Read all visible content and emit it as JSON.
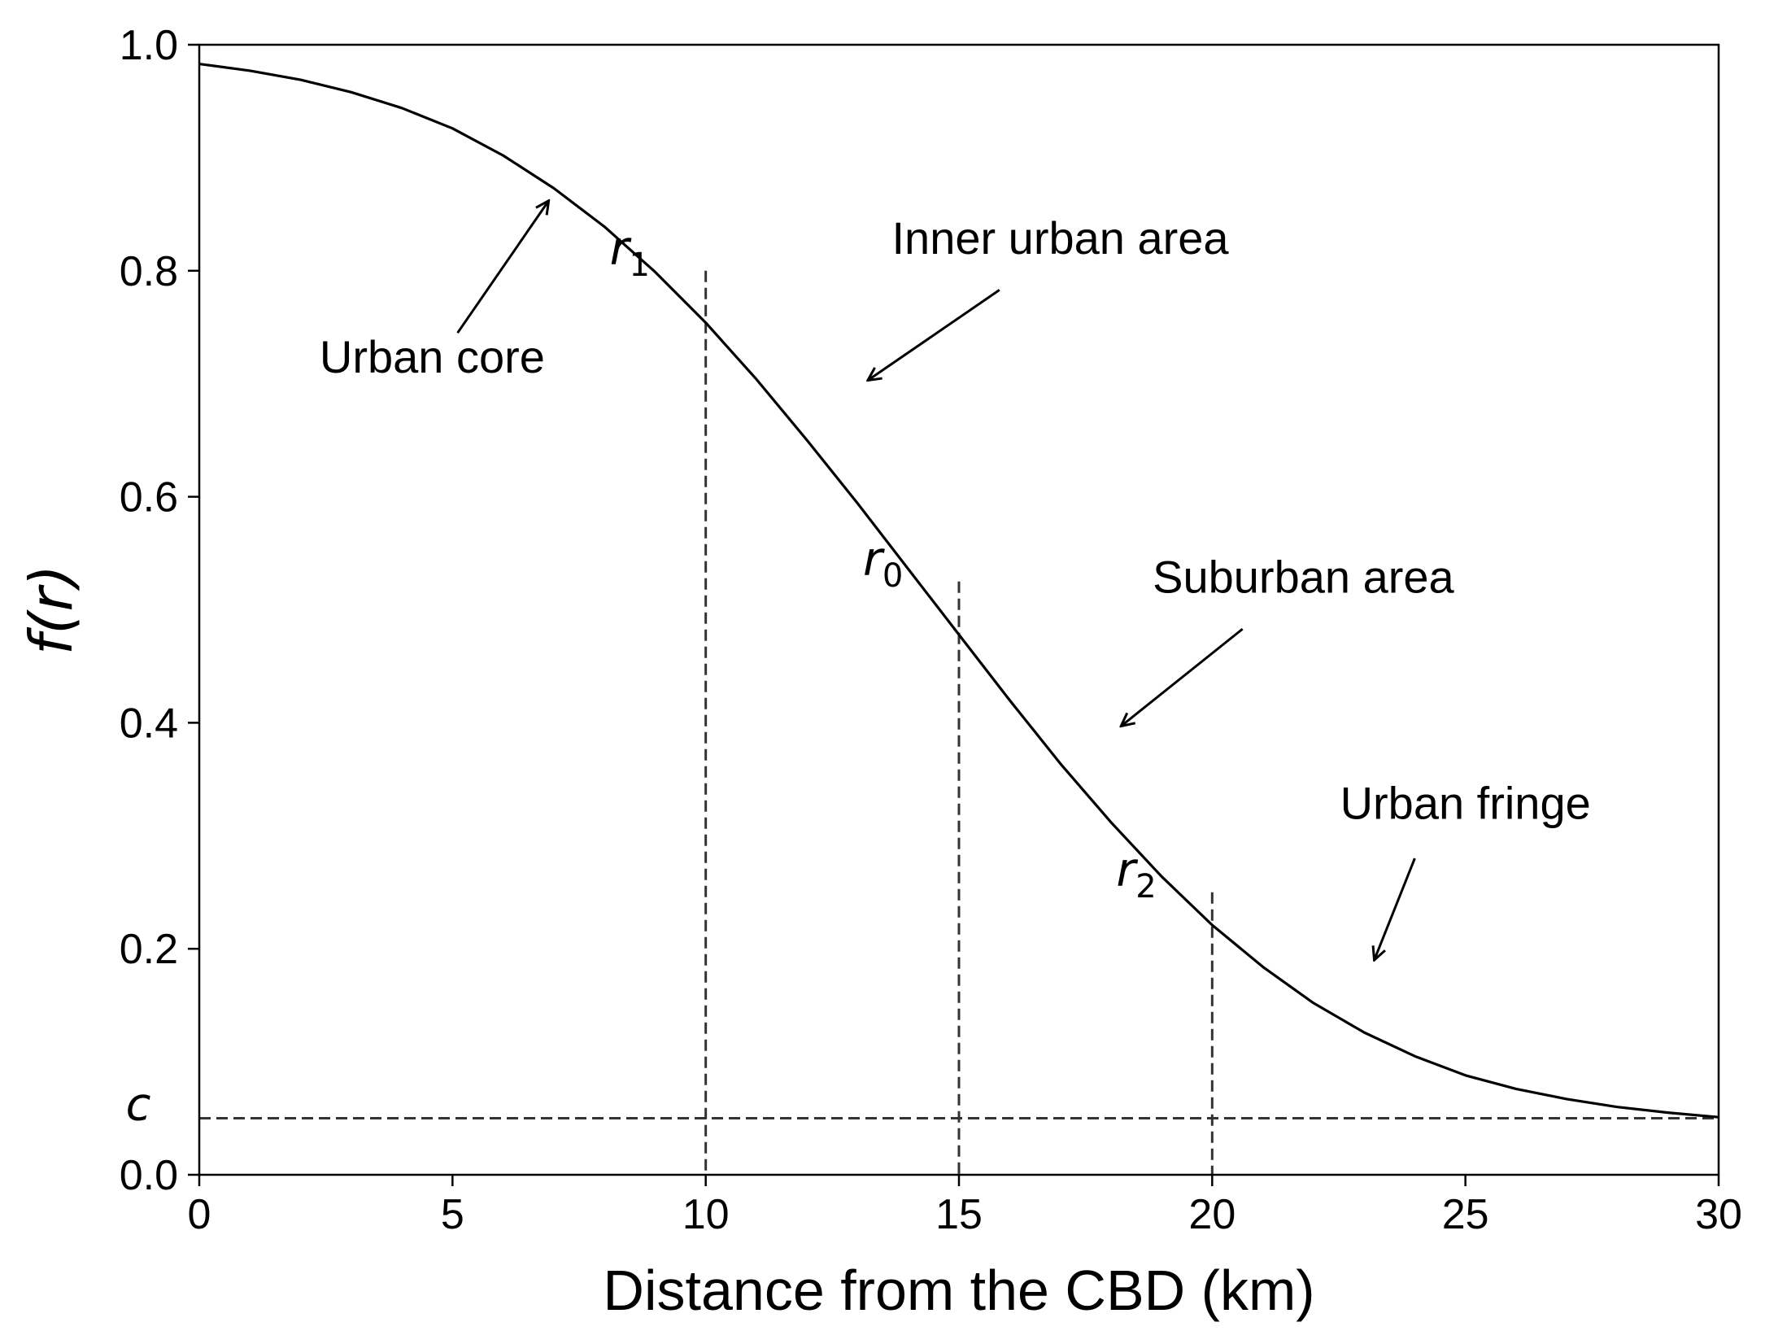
{
  "chart_data": {
    "type": "line",
    "title": "",
    "xlabel": "Distance from the CBD (km)",
    "ylabel": "f(r)",
    "xlim": [
      0,
      30
    ],
    "ylim": [
      0,
      1
    ],
    "x_ticks": [
      "0",
      "5",
      "10",
      "15",
      "20",
      "25",
      "30"
    ],
    "y_ticks": [
      "0.0",
      "0.2",
      "0.4",
      "0.6",
      "0.8",
      "1.0"
    ],
    "grid": false,
    "legend": "none",
    "series": [
      {
        "line_style": "solid",
        "color": "#000000",
        "x": [
          0,
          1,
          2,
          3,
          4,
          5,
          6,
          7,
          8,
          9,
          10,
          11,
          12,
          13,
          14,
          15,
          16,
          17,
          18,
          19,
          20,
          21,
          22,
          23,
          24,
          25,
          26,
          27,
          28,
          29,
          30
        ],
        "y": [
          0.983,
          0.977,
          0.969,
          0.958,
          0.944,
          0.926,
          0.902,
          0.873,
          0.839,
          0.799,
          0.754,
          0.704,
          0.65,
          0.594,
          0.536,
          0.478,
          0.42,
          0.364,
          0.312,
          0.264,
          0.221,
          0.184,
          0.152,
          0.126,
          0.105,
          0.088,
          0.076,
          0.067,
          0.06,
          0.055,
          0.051
        ]
      }
    ],
    "reference_lines": {
      "c": {
        "label": "c",
        "y": 0.05,
        "style": "dashed"
      },
      "verticals": [
        {
          "label": "r",
          "subscript": "1",
          "x": 10,
          "y_top": 0.8,
          "style": "dashed"
        },
        {
          "label": "r",
          "subscript": "0",
          "x": 15,
          "y_top": 0.525,
          "style": "dashed"
        },
        {
          "label": "r",
          "subscript": "2",
          "x": 20,
          "y_top": 0.25,
          "style": "dashed"
        }
      ]
    },
    "annotations": [
      {
        "text": "Urban core",
        "text_x": 4.6,
        "text_y": 0.71,
        "arrow_from": [
          5.1,
          0.745
        ],
        "arrow_to": [
          6.9,
          0.862
        ]
      },
      {
        "text": "Inner urban area",
        "text_x": 17.0,
        "text_y": 0.815,
        "arrow_from": [
          15.8,
          0.783
        ],
        "arrow_to": [
          13.2,
          0.703
        ]
      },
      {
        "text": "Suburban area",
        "text_x": 21.8,
        "text_y": 0.515,
        "arrow_from": [
          20.6,
          0.483
        ],
        "arrow_to": [
          18.2,
          0.397
        ]
      },
      {
        "text": "Urban fringe",
        "text_x": 25.0,
        "text_y": 0.315,
        "arrow_from": [
          24.0,
          0.28
        ],
        "arrow_to": [
          23.2,
          0.19
        ]
      }
    ]
  }
}
